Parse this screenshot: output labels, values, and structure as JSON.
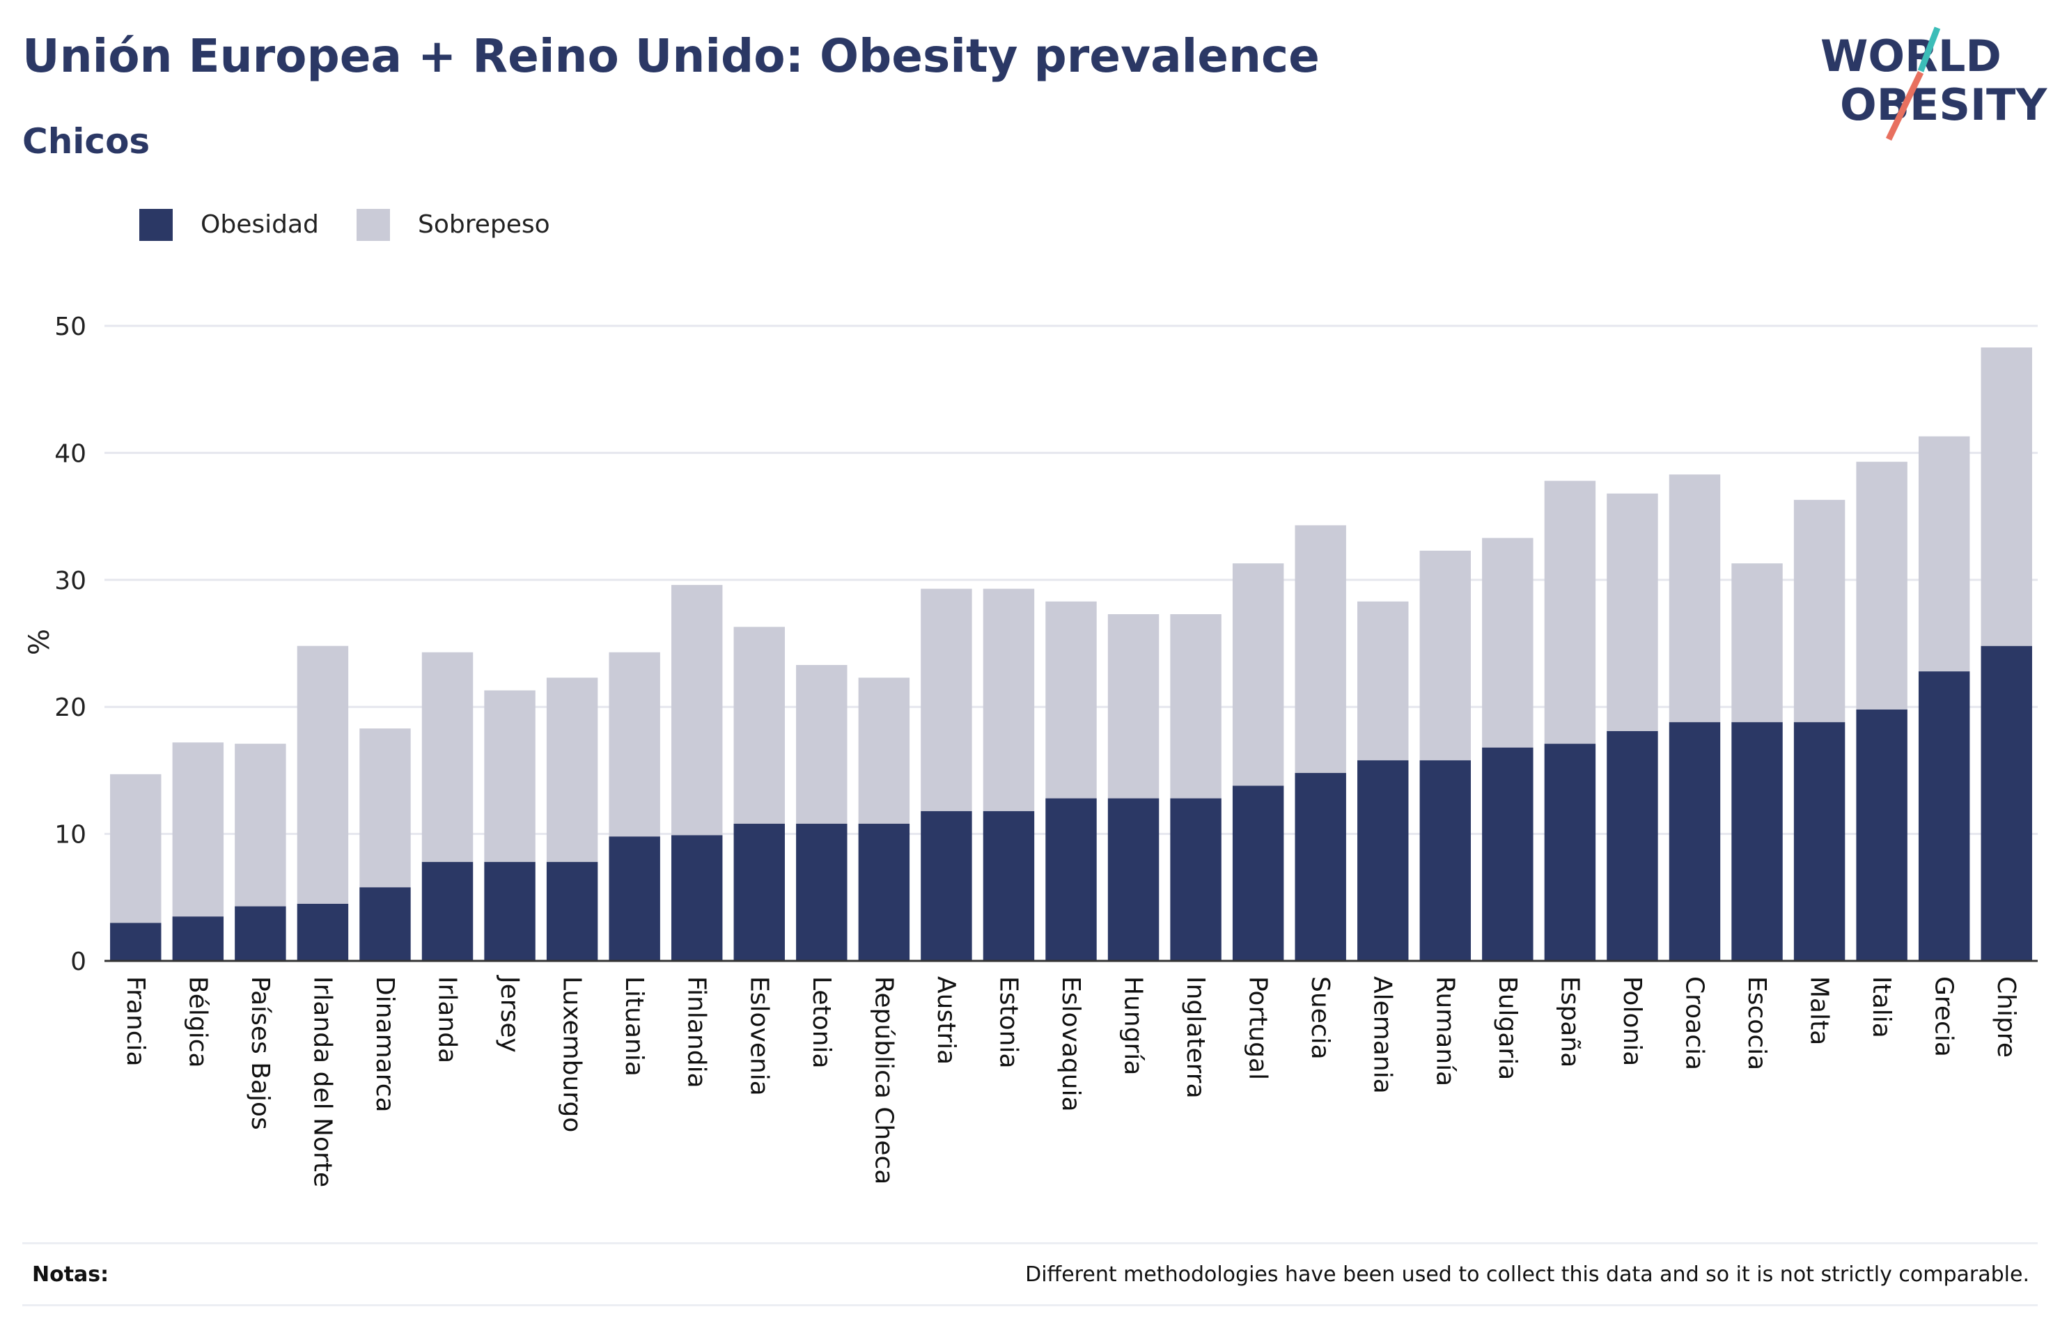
{
  "header": {
    "title": "Unión Europea + Reino Unido: Obesity prevalence",
    "subtitle": "Chicos"
  },
  "logo": {
    "line1": "WORLD",
    "line2": "OBESITY"
  },
  "colors": {
    "obesity": "#2b3865",
    "overweight": "#cacbd7",
    "title": "#2b3865",
    "logo_teal": "#3cbdb8",
    "logo_coral": "#e8705f"
  },
  "legend": [
    {
      "label": "Obesidad",
      "color": "#2b3865"
    },
    {
      "label": "Sobrepeso",
      "color": "#cacbd7"
    }
  ],
  "notes": {
    "label": "Notas:",
    "text": "Different methodologies have been used to collect this data and so it is not strictly comparable."
  },
  "chart_data": {
    "type": "bar",
    "stacked": true,
    "ylabel": "%",
    "xlabel": "",
    "ylim": [
      0,
      50
    ],
    "yticks": [
      0,
      10,
      20,
      30,
      40,
      50
    ],
    "grid": true,
    "legend_position": "top-left",
    "categories": [
      "Francia",
      "Bélgica",
      "Países Bajos",
      "Irlanda del Norte",
      "Dinamarca",
      "Irlanda",
      "Jersey",
      "Luxemburgo",
      "Lituania",
      "Finlandia",
      "Eslovenia",
      "Letonia",
      "República Checa",
      "Austria",
      "Estonia",
      "Eslovaquia",
      "Hungría",
      "Inglaterra",
      "Portugal",
      "Suecia",
      "Alemania",
      "Rumaní­a",
      "Bulgaria",
      "España",
      "Polonia",
      "Croacia",
      "Escocia",
      "Malta",
      "Italia",
      "Grecia",
      "Chipre"
    ],
    "series": [
      {
        "name": "Obesidad",
        "values": [
          3.0,
          3.5,
          4.3,
          4.5,
          5.8,
          7.8,
          7.8,
          7.8,
          9.8,
          9.9,
          10.8,
          10.8,
          10.8,
          11.8,
          11.8,
          12.8,
          12.8,
          12.8,
          13.8,
          14.8,
          15.8,
          15.8,
          16.8,
          17.1,
          18.1,
          18.8,
          18.8,
          18.8,
          19.8,
          22.8,
          24.8
        ]
      },
      {
        "name": "Sobrepeso",
        "values": [
          11.7,
          13.7,
          12.8,
          20.3,
          12.5,
          16.5,
          13.5,
          14.5,
          14.5,
          19.7,
          15.5,
          12.5,
          11.5,
          17.5,
          17.5,
          15.5,
          14.5,
          14.5,
          17.5,
          19.5,
          12.5,
          16.5,
          16.5,
          20.7,
          18.7,
          19.5,
          12.5,
          17.5,
          19.5,
          18.5,
          23.5
        ]
      }
    ]
  }
}
